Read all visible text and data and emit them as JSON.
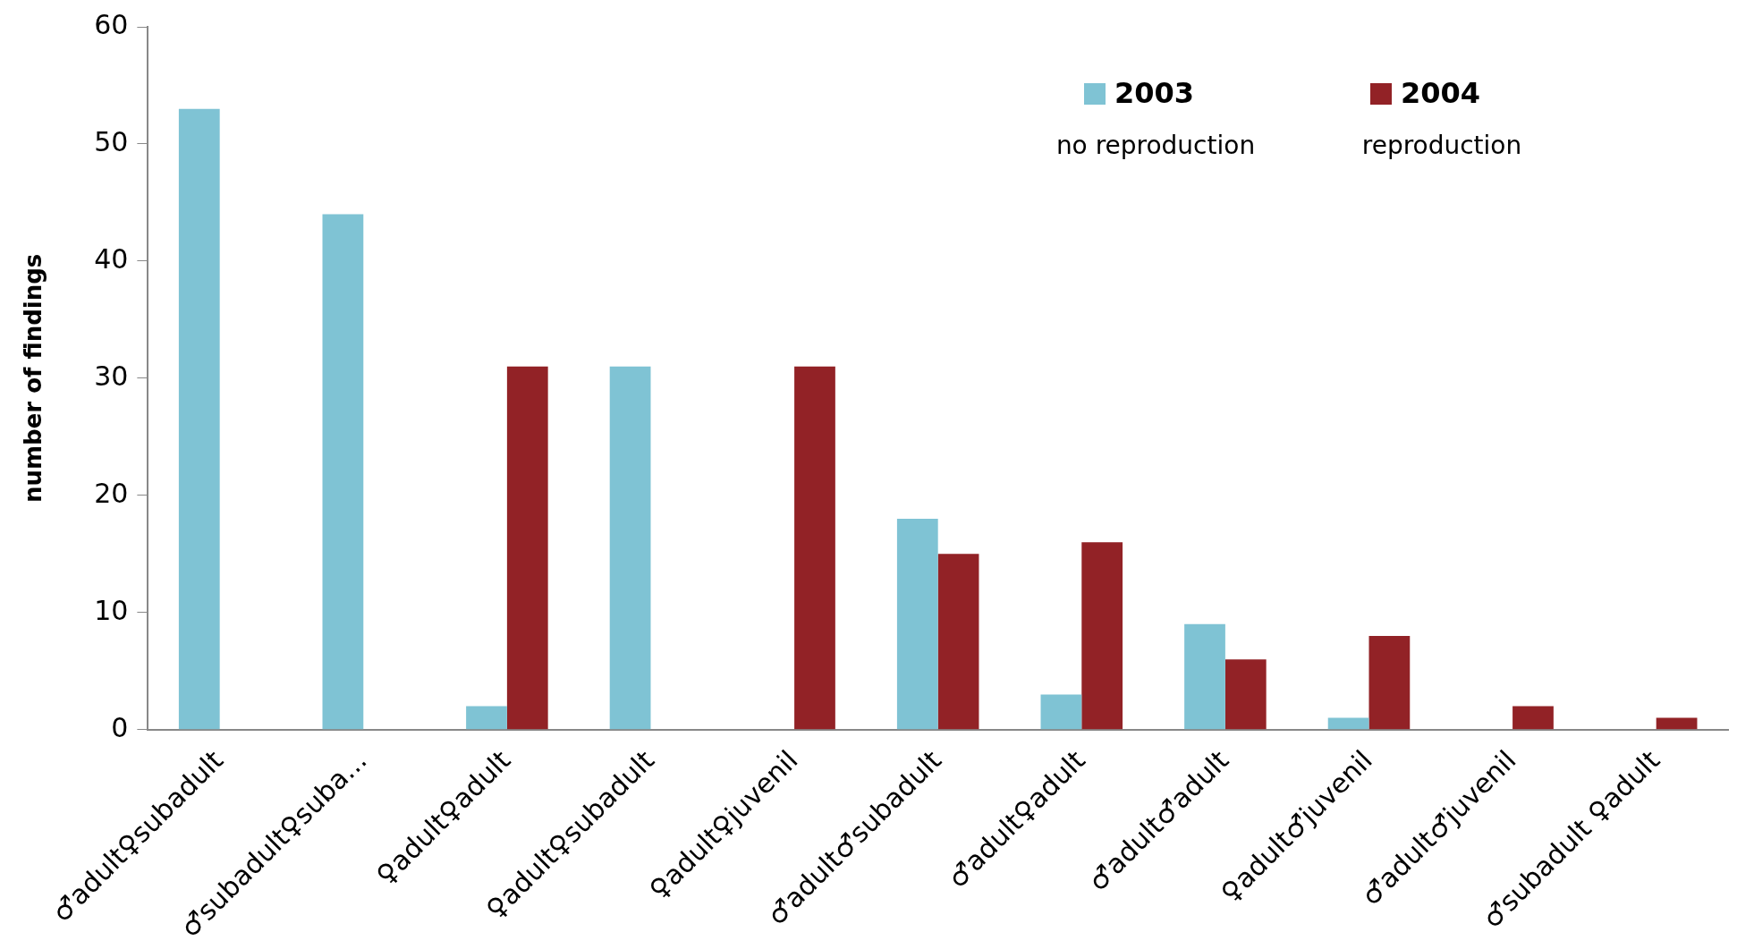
{
  "chart_data": {
    "type": "bar",
    "ylabel": "number of findings",
    "categories": [
      "♂adult♀subadult",
      "♂subadult♀suba...",
      "♀adult♀adult",
      "♀adult♀subadult",
      "♀adult♀juvenil",
      "♂adult♂subadult",
      "♂adult♀adult",
      "♂adult♂adult",
      "♀adult♂juvenil",
      "♂adult♂juvenil",
      "♂subadult ♀adult"
    ],
    "series": [
      {
        "name": "2003",
        "color": "#7fc3d4",
        "values": [
          53,
          44,
          2,
          31,
          0,
          18,
          3,
          9,
          1,
          0,
          0
        ]
      },
      {
        "name": "2004",
        "color": "#922226",
        "values": [
          0,
          0,
          31,
          0,
          31,
          15,
          16,
          6,
          8,
          2,
          1
        ]
      }
    ],
    "annotations": [
      "no reproduction",
      "reproduction"
    ],
    "ylim": [
      0,
      60
    ],
    "yticks": [
      0,
      10,
      20,
      30,
      40,
      50,
      60
    ],
    "grid": false,
    "legend": "top right"
  }
}
